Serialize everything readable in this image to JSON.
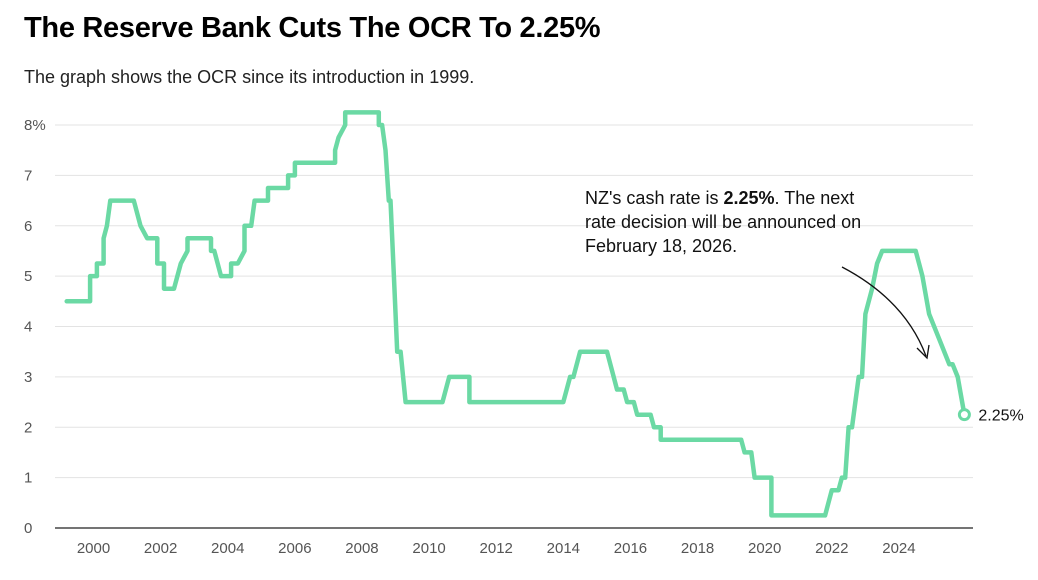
{
  "chart_data": {
    "type": "line",
    "title": "The Reserve Bank Cuts The OCR To 2.25%",
    "subtitle": "The graph shows the OCR since its introduction in 1999.",
    "xlabel": "",
    "ylabel": "",
    "xlim": [
      1998.8,
      2026.3
    ],
    "ylim": [
      0,
      8
    ],
    "y_ticks": [
      0,
      1,
      2,
      3,
      4,
      5,
      6,
      7,
      8
    ],
    "y_tick_labels": [
      "0",
      "1",
      "2",
      "3",
      "4",
      "5",
      "6",
      "7",
      "8%"
    ],
    "x_ticks": [
      2000,
      2002,
      2004,
      2006,
      2008,
      2010,
      2012,
      2014,
      2016,
      2018,
      2020,
      2022,
      2024
    ],
    "x_tick_labels": [
      "2000",
      "2002",
      "2004",
      "2006",
      "2008",
      "2010",
      "2012",
      "2014",
      "2016",
      "2018",
      "2020",
      "2022",
      "2024"
    ],
    "grid": true,
    "series": [
      {
        "name": "OCR",
        "color": "#6bd9a4",
        "points": [
          [
            1999.2,
            4.5
          ],
          [
            1999.6,
            4.5
          ],
          [
            1999.9,
            4.5
          ],
          [
            1999.9,
            5.0
          ],
          [
            2000.1,
            5.0
          ],
          [
            2000.1,
            5.25
          ],
          [
            2000.3,
            5.25
          ],
          [
            2000.3,
            5.75
          ],
          [
            2000.4,
            6.0
          ],
          [
            2000.5,
            6.5
          ],
          [
            2001.2,
            6.5
          ],
          [
            2001.4,
            6.0
          ],
          [
            2001.6,
            5.75
          ],
          [
            2001.9,
            5.75
          ],
          [
            2001.9,
            5.25
          ],
          [
            2002.1,
            5.25
          ],
          [
            2002.1,
            4.75
          ],
          [
            2002.4,
            4.75
          ],
          [
            2002.6,
            5.25
          ],
          [
            2002.8,
            5.5
          ],
          [
            2002.8,
            5.75
          ],
          [
            2003.5,
            5.75
          ],
          [
            2003.5,
            5.5
          ],
          [
            2003.6,
            5.5
          ],
          [
            2003.8,
            5.0
          ],
          [
            2004.1,
            5.0
          ],
          [
            2004.1,
            5.25
          ],
          [
            2004.3,
            5.25
          ],
          [
            2004.5,
            5.5
          ],
          [
            2004.5,
            6.0
          ],
          [
            2004.7,
            6.0
          ],
          [
            2004.8,
            6.5
          ],
          [
            2005.2,
            6.5
          ],
          [
            2005.2,
            6.75
          ],
          [
            2005.8,
            6.75
          ],
          [
            2005.8,
            7.0
          ],
          [
            2006.0,
            7.0
          ],
          [
            2006.0,
            7.25
          ],
          [
            2007.2,
            7.25
          ],
          [
            2007.2,
            7.5
          ],
          [
            2007.3,
            7.75
          ],
          [
            2007.5,
            8.0
          ],
          [
            2007.5,
            8.25
          ],
          [
            2008.5,
            8.25
          ],
          [
            2008.5,
            8.0
          ],
          [
            2008.6,
            8.0
          ],
          [
            2008.7,
            7.5
          ],
          [
            2008.8,
            6.5
          ],
          [
            2008.85,
            6.5
          ],
          [
            2008.95,
            5.0
          ],
          [
            2009.05,
            3.5
          ],
          [
            2009.15,
            3.5
          ],
          [
            2009.3,
            2.5
          ],
          [
            2010.4,
            2.5
          ],
          [
            2010.6,
            3.0
          ],
          [
            2011.2,
            3.0
          ],
          [
            2011.2,
            2.5
          ],
          [
            2014.0,
            2.5
          ],
          [
            2014.2,
            3.0
          ],
          [
            2014.3,
            3.0
          ],
          [
            2014.5,
            3.5
          ],
          [
            2015.3,
            3.5
          ],
          [
            2015.5,
            3.0
          ],
          [
            2015.6,
            2.75
          ],
          [
            2015.8,
            2.75
          ],
          [
            2015.9,
            2.5
          ],
          [
            2016.1,
            2.5
          ],
          [
            2016.2,
            2.25
          ],
          [
            2016.6,
            2.25
          ],
          [
            2016.7,
            2.0
          ],
          [
            2016.9,
            2.0
          ],
          [
            2016.9,
            1.75
          ],
          [
            2019.3,
            1.75
          ],
          [
            2019.4,
            1.5
          ],
          [
            2019.6,
            1.5
          ],
          [
            2019.7,
            1.0
          ],
          [
            2020.2,
            1.0
          ],
          [
            2020.2,
            0.25
          ],
          [
            2021.8,
            0.25
          ],
          [
            2022.0,
            0.75
          ],
          [
            2022.2,
            0.75
          ],
          [
            2022.3,
            1.0
          ],
          [
            2022.4,
            1.0
          ],
          [
            2022.5,
            2.0
          ],
          [
            2022.6,
            2.0
          ],
          [
            2022.8,
            3.0
          ],
          [
            2022.9,
            3.0
          ],
          [
            2023.0,
            4.25
          ],
          [
            2023.2,
            4.75
          ],
          [
            2023.35,
            5.25
          ],
          [
            2023.5,
            5.5
          ],
          [
            2024.5,
            5.5
          ],
          [
            2024.7,
            5.0
          ],
          [
            2024.9,
            4.25
          ],
          [
            2025.2,
            3.75
          ],
          [
            2025.5,
            3.25
          ],
          [
            2025.6,
            3.25
          ],
          [
            2025.75,
            3.0
          ],
          [
            2025.95,
            2.25
          ]
        ]
      }
    ],
    "annotation": {
      "text_before": "NZ's cash rate is ",
      "text_bold": "2.25%",
      "text_after": ". The next rate decision will be announced on February 18, 2026."
    },
    "end_label": "2.25%",
    "end_point": [
      2025.95,
      2.25
    ]
  }
}
